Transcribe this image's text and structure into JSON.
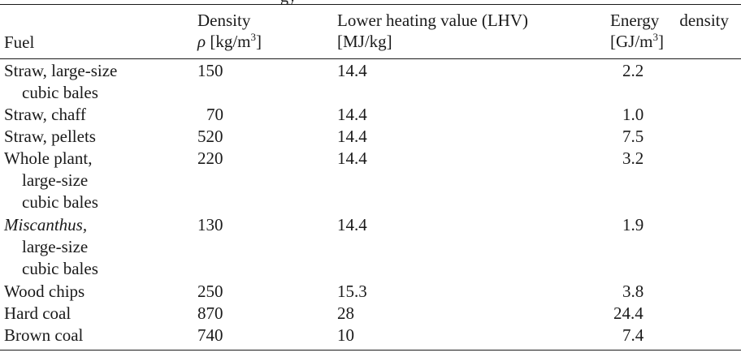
{
  "table": {
    "caption_fragment": "gy",
    "headers": {
      "fuel": "Fuel",
      "density_title": "Density",
      "density_symbol": "ρ",
      "density_unit_pre": "[kg/m",
      "density_unit_sup": "3",
      "density_unit_post": "]",
      "lhv_title": "Lower heating value (LHV)",
      "lhv_unit": "[MJ/kg]",
      "energy_title_a": "Energy",
      "energy_title_b": "density",
      "energy_unit_pre": "[GJ/m",
      "energy_unit_sup": "3",
      "energy_unit_post": "]"
    },
    "rows": [
      {
        "fuel": [
          "Straw, large-size",
          "cubic bales"
        ],
        "density": "150",
        "lhv": "14.4",
        "energy": "2.2"
      },
      {
        "fuel": [
          "Straw, chaff"
        ],
        "density": "70",
        "lhv": "14.4",
        "energy": "1.0"
      },
      {
        "fuel": [
          "Straw, pellets"
        ],
        "density": "520",
        "lhv": "14.4",
        "energy": "7.5"
      },
      {
        "fuel": [
          "Whole plant,",
          "large-size",
          "cubic bales"
        ],
        "density": "220",
        "lhv": "14.4",
        "energy": "3.2"
      },
      {
        "fuel": [
          "Miscanthus,",
          "large-size",
          "cubic bales"
        ],
        "fuel_italic_word": "Miscanthus",
        "density": "130",
        "lhv": "14.4",
        "energy": "1.9"
      },
      {
        "fuel": [
          "Wood chips"
        ],
        "density": "250",
        "lhv": "15.3",
        "energy": "3.8"
      },
      {
        "fuel": [
          "Hard coal"
        ],
        "density": "870",
        "lhv": "28",
        "energy": "24.4"
      },
      {
        "fuel": [
          "Brown coal"
        ],
        "density": "740",
        "lhv": "10",
        "energy": "7.4"
      }
    ]
  }
}
